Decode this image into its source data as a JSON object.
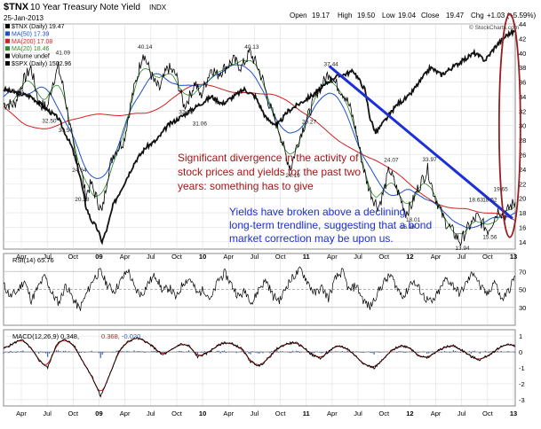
{
  "header": {
    "symbol": "$TNX",
    "name": "10 Year Treasury Note Yield",
    "exchange": "INDX",
    "date": "25-Jan-2013",
    "open_label": "Open",
    "open": "19.17",
    "high_label": "High",
    "high": "19.50",
    "low_label": "Low",
    "low": "19.04",
    "close_label": "Close",
    "close": "19.47",
    "chg_label": "Chg",
    "chg": "+1.03 (+5.59%)",
    "watermark": "© StockCharts.com"
  },
  "legend": [
    {
      "text": "$TNX (Daily) 19.47",
      "color": "#000000"
    },
    {
      "text": "MA(50) 17.39",
      "color": "#1f4fd0"
    },
    {
      "text": "MA(200) 17.08",
      "color": "#d21f1f"
    },
    {
      "text": "MA(20) 18.46",
      "color": "#2e8b2e"
    },
    {
      "text": "Volume undef",
      "color": "#000000"
    },
    {
      "text": "$SPX (Daily) 1502.96",
      "color": "#000000"
    }
  ],
  "annotations": [
    {
      "text": "Significant divergence in the activity of",
      "color": "#a01818"
    },
    {
      "text": "stock prices and yields for the past two",
      "color": "#a01818"
    },
    {
      "text": "years: something has to give",
      "color": "#a01818"
    },
    {
      "text": "Yields have broken above a declining",
      "color": "#1c2fd8"
    },
    {
      "text": "long-term trendline, suggesting that a bond",
      "color": "#1c2fd8"
    },
    {
      "text": "market correction may be upon us.",
      "color": "#1c2fd8"
    }
  ],
  "x_labels": [
    "Apr",
    "Jul",
    "Oct",
    "09",
    "Apr",
    "Jul",
    "Oct",
    "10",
    "Apr",
    "Jul",
    "Oct",
    "11",
    "Apr",
    "Jul",
    "Oct",
    "12",
    "Apr",
    "Jul",
    "Oct",
    "13"
  ],
  "rsi_legend": "RSI(14) 65.76",
  "macd_legend": {
    "main": "MACD(12,26,9) 0.348,",
    "signal": "0.368,",
    "hist": "-0.020"
  },
  "chart_data": [
    {
      "type": "line",
      "title": "$TNX 10 Year Treasury Note Yield INDX",
      "x_labels": [
        "Apr",
        "Jul",
        "Oct",
        "09",
        "Apr",
        "Jul",
        "Oct",
        "10",
        "Apr",
        "Jul",
        "Oct",
        "11",
        "Apr",
        "Jul",
        "Oct",
        "12",
        "Apr",
        "Jul",
        "Oct",
        "13"
      ],
      "ylim": [
        13,
        44
      ],
      "y_ticks": [
        14,
        16,
        18,
        20,
        22,
        24,
        26,
        28,
        30,
        32,
        34,
        36,
        38,
        40,
        42,
        44
      ],
      "series": [
        {
          "name": "$TNX (Daily) 19.47",
          "points": [
            [
              0,
              33
            ],
            [
              4,
              32.88
            ],
            [
              7,
              36
            ],
            [
              10,
              38
            ],
            [
              13,
              33
            ],
            [
              16,
              32.5
            ],
            [
              18,
              36
            ],
            [
              20,
              38
            ],
            [
              22,
              35
            ],
            [
              24,
              30.54
            ],
            [
              26,
              26
            ],
            [
              28,
              24.64
            ],
            [
              30,
              20.38
            ],
            [
              32,
              22
            ],
            [
              34,
              20
            ],
            [
              36,
              18
            ],
            [
              38,
              23
            ],
            [
              40,
              26
            ],
            [
              42,
              27
            ],
            [
              44,
              28
            ],
            [
              47,
              34
            ],
            [
              49,
              37
            ],
            [
              51,
              40.14
            ],
            [
              53,
              38
            ],
            [
              55,
              36
            ],
            [
              57,
              35
            ],
            [
              60,
              38
            ],
            [
              63,
              37
            ],
            [
              66,
              32.65
            ],
            [
              68,
              34
            ],
            [
              70,
              36
            ],
            [
              72,
              34
            ],
            [
              74,
              36
            ],
            [
              76,
              38
            ],
            [
              78,
              37
            ],
            [
              81,
              38
            ],
            [
              84,
              39
            ],
            [
              87,
              38
            ],
            [
              90,
              40.13
            ],
            [
              93,
              38
            ],
            [
              95,
              36
            ],
            [
              97,
              33
            ],
            [
              99,
              31
            ],
            [
              101,
              29
            ],
            [
              103,
              26
            ],
            [
              105,
              24.19
            ],
            [
              107,
              27
            ],
            [
              109,
              29.27
            ],
            [
              111,
              31
            ],
            [
              113,
              33
            ],
            [
              115,
              35
            ],
            [
              117,
              36
            ],
            [
              119,
              37.44
            ],
            [
              121,
              36
            ],
            [
              123,
              35
            ],
            [
              125,
              34
            ],
            [
              127,
              32
            ],
            [
              129,
              29
            ],
            [
              131,
              25
            ],
            [
              133,
              22
            ],
            [
              135,
              20
            ],
            [
              137,
              18.8
            ],
            [
              139,
              21
            ],
            [
              141,
              24.07
            ],
            [
              143,
              22
            ],
            [
              145,
              20
            ],
            [
              147,
              18.01
            ],
            [
              149,
              19
            ],
            [
              151,
              21
            ],
            [
              153,
              22.5
            ],
            [
              155,
              23.97
            ],
            [
              157,
              21
            ],
            [
              159,
              19
            ],
            [
              161,
              17
            ],
            [
              163,
              16
            ],
            [
              165,
              15
            ],
            [
              167,
              13.94
            ],
            [
              169,
              15.5
            ],
            [
              171,
              16.5
            ],
            [
              173,
              17.5
            ],
            [
              175,
              16.5
            ],
            [
              177,
              15.56
            ],
            [
              179,
              17
            ],
            [
              181,
              18.52
            ],
            [
              183,
              17.5
            ],
            [
              185,
              18.8
            ],
            [
              187,
              19.47
            ]
          ]
        },
        {
          "name": "$SPX (Daily) 1502.96",
          "points": [
            [
              0,
              35
            ],
            [
              10,
              34
            ],
            [
              20,
              31
            ],
            [
              25,
              27
            ],
            [
              28,
              23
            ],
            [
              30,
              19
            ],
            [
              32,
              17
            ],
            [
              34,
              16
            ],
            [
              36,
              14
            ],
            [
              38,
              16
            ],
            [
              40,
              19
            ],
            [
              44,
              22
            ],
            [
              48,
              25
            ],
            [
              52,
              27
            ],
            [
              56,
              28
            ],
            [
              60,
              30
            ],
            [
              64,
              31
            ],
            [
              68,
              32
            ],
            [
              72,
              33
            ],
            [
              76,
              34
            ],
            [
              80,
              33
            ],
            [
              84,
              34
            ],
            [
              88,
              35
            ],
            [
              92,
              34
            ],
            [
              96,
              31
            ],
            [
              100,
              30
            ],
            [
              104,
              32
            ],
            [
              108,
              33
            ],
            [
              112,
              34
            ],
            [
              116,
              35
            ],
            [
              120,
              36.5
            ],
            [
              124,
              37
            ],
            [
              128,
              37.5
            ],
            [
              132,
              35
            ],
            [
              134,
              31
            ],
            [
              136,
              29
            ],
            [
              140,
              31
            ],
            [
              144,
              33
            ],
            [
              148,
              34
            ],
            [
              152,
              36
            ],
            [
              156,
              38
            ],
            [
              160,
              37
            ],
            [
              164,
              38
            ],
            [
              168,
              39
            ],
            [
              172,
              40
            ],
            [
              176,
              39
            ],
            [
              180,
              41
            ],
            [
              184,
              42.5
            ],
            [
              187,
              43
            ]
          ]
        }
      ],
      "value_labels": [
        "32.88",
        "32.50",
        "41.09",
        "30.54",
        "24.64",
        "20.38",
        "40.14",
        "32.65",
        "31.06",
        "40.13",
        "24.19",
        "29.27",
        "37.44",
        "24.07",
        "33.97",
        "16.96",
        "18.01",
        "18.63",
        "18.52",
        "19.65",
        "13.94",
        "15.56"
      ],
      "annotations": [
        "Significant divergence in the activity of stock prices and yields for the past two years: something has to give",
        "Yields have broken above a declining long-term trendline, suggesting that a bond market correction may be upon us."
      ]
    },
    {
      "type": "line",
      "title": "RSI(14) 65.76",
      "ylim": [
        10,
        90
      ],
      "y_ticks": [
        30,
        50,
        70
      ],
      "series": [
        {
          "name": "RSI(14)",
          "values": [
            55,
            42,
            48,
            60,
            38,
            52,
            65,
            45,
            35,
            55,
            40,
            28,
            45,
            62,
            70,
            55,
            48,
            60,
            72,
            50,
            44,
            58,
            66,
            48,
            52,
            40,
            58,
            62,
            45,
            50,
            38,
            60,
            68,
            55,
            42,
            48,
            35,
            52,
            60,
            42,
            38,
            55,
            65,
            72,
            58,
            45,
            52,
            40,
            62,
            70,
            48,
            55,
            38,
            30,
            45,
            58,
            66,
            50,
            42,
            60,
            52,
            40,
            35,
            48,
            62,
            55,
            45,
            58,
            70,
            52,
            44,
            60,
            38,
            48,
            65
          ]
        }
      ]
    },
    {
      "type": "line",
      "title": "MACD(12,26,9) 0.348, 0.368, -0.020",
      "ylim": [
        -3.4,
        1.4
      ],
      "y_ticks": [
        -3,
        -2,
        -1,
        0,
        1
      ],
      "series": [
        {
          "name": "MACD",
          "values": [
            0.2,
            0.5,
            0.8,
            0.3,
            -0.5,
            -1.0,
            0.5,
            0.8,
            0.4,
            -0.6,
            -1.5,
            -2.8,
            -1.5,
            0.0,
            0.6,
            0.9,
            0.7,
            0.3,
            -0.2,
            0.1,
            0.5,
            0.4,
            -0.3,
            -0.1,
            0.3,
            0.6,
            0.5,
            0.2,
            -0.6,
            -0.9,
            -0.4,
            0.2,
            0.5,
            0.6,
            0.3,
            -0.2,
            -0.4,
            0.1,
            0.4,
            0.2,
            -0.3,
            -0.8,
            -1.0,
            -0.5,
            0.1,
            0.4,
            0.3,
            -0.2,
            -0.4,
            0.0,
            0.3,
            0.4,
            0.1,
            -0.3,
            -0.5,
            -0.2,
            0.2,
            0.5,
            0.348
          ]
        },
        {
          "name": "Signal",
          "values": [
            0.1,
            0.3,
            0.6,
            0.5,
            0.0,
            -0.6,
            0.0,
            0.5,
            0.5,
            -0.2,
            -1.0,
            -2.2,
            -2.0,
            -0.8,
            0.2,
            0.7,
            0.8,
            0.5,
            0.1,
            0.0,
            0.3,
            0.4,
            0.0,
            -0.1,
            0.1,
            0.4,
            0.5,
            0.3,
            -0.2,
            -0.7,
            -0.6,
            -0.1,
            0.3,
            0.5,
            0.4,
            0.0,
            -0.3,
            -0.1,
            0.2,
            0.3,
            0.0,
            -0.5,
            -0.9,
            -0.7,
            -0.2,
            0.2,
            0.3,
            0.0,
            -0.3,
            -0.1,
            0.1,
            0.3,
            0.2,
            -0.1,
            -0.4,
            -0.3,
            0.0,
            0.3,
            0.368
          ]
        }
      ]
    }
  ],
  "colors": {
    "price": "#000000",
    "ma50": "#1f4fd0",
    "ma200": "#d21f1f",
    "ma20": "#2e8b2e",
    "trendline": "#1c2fd8",
    "ellipse": "#9b1c1c",
    "macd": "#000000",
    "signal": "#c81e1e",
    "histogram": "#3a5fb0",
    "grid": "#e0e0e0"
  }
}
